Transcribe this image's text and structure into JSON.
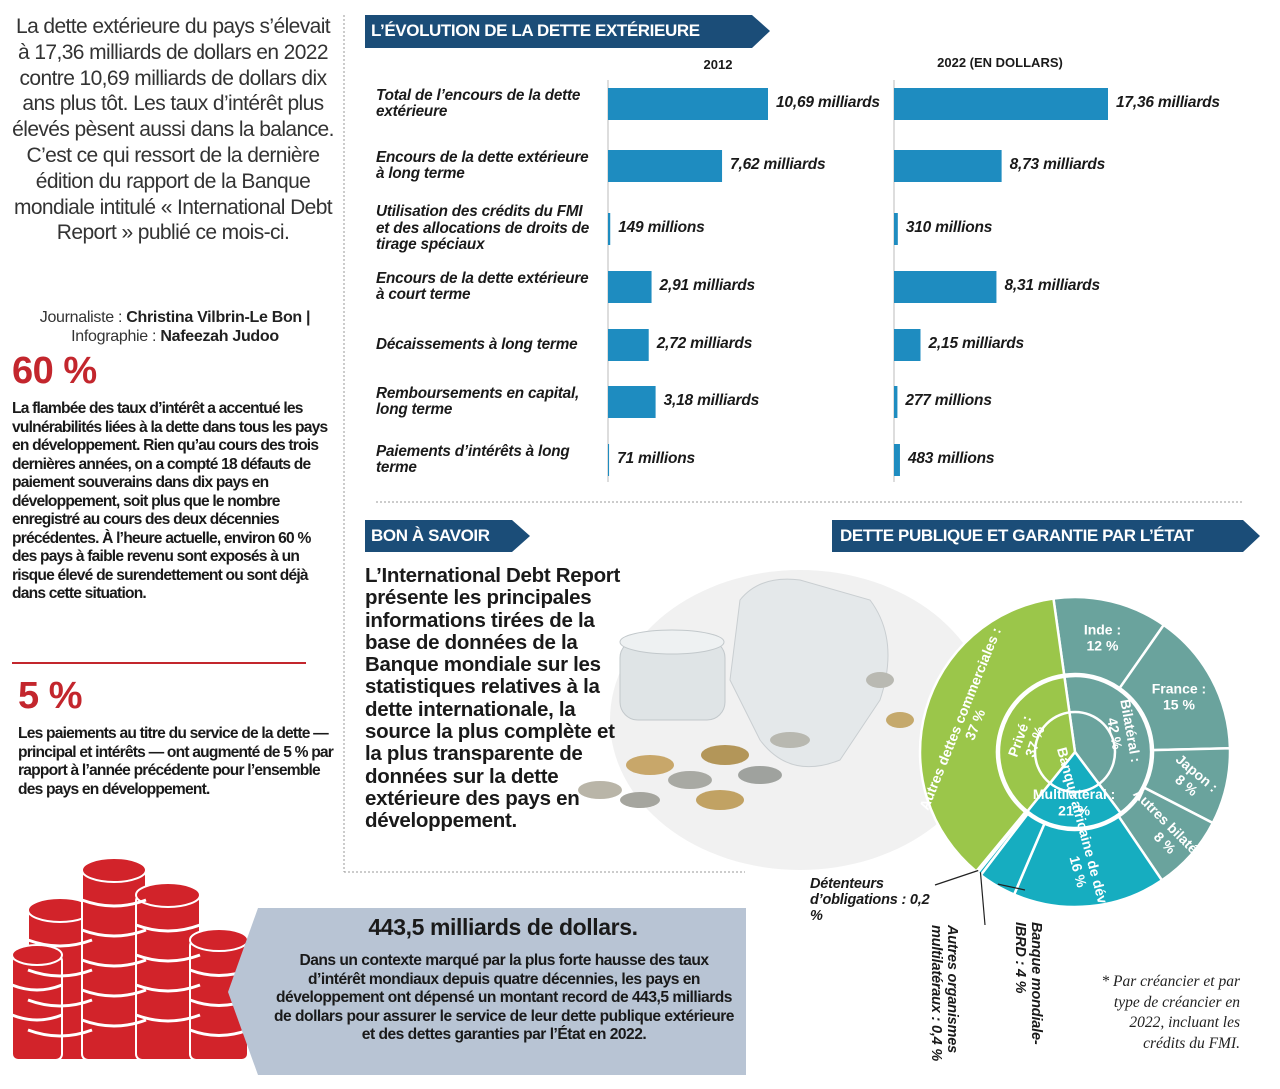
{
  "intro": {
    "paragraph": "La dette extérieure du pays s’élevait à 17,36 milliards de dollars en 2022 contre 10,69 milliards de dollars dix ans plus tôt. Les taux d’intérêt plus élevés pèsent aussi dans la balance. C’est ce qui ressort de la dernière édition du rapport de la Banque mondiale intitulé « International Debt Report » publié ce mois-ci.",
    "credits": [
      {
        "role": "Journaliste :",
        "name": "Christina Vilbrin-Le Bon |"
      },
      {
        "role": "Infographie :",
        "name": "Nafeezah Judoo"
      }
    ]
  },
  "facts": [
    {
      "figure": "60 %",
      "text": "La flambée des taux d’intérêt a accentué les vulnérabilités liées à la dette dans tous les pays en développement. Rien qu’au cours des trois dernières années, on a compté 18 défauts de paiement souverains dans dix pays en développement, soit plus que le nombre enregistré au cours des deux décennies précédentes. À l’heure actuelle, environ 60 % des pays à faible revenu sont exposés à un risque élevé de surendettement ou sont déjà dans cette situation."
    },
    {
      "figure": "5 %",
      "text": "Les paiements au titre du service de la dette — principal et intérêts — ont augmenté de 5 % par rapport à l’année précédente pour l’ensemble des pays en développement."
    }
  ],
  "highlight": {
    "title": "443,5 milliards de dollars.",
    "text": "Dans un contexte marqué par la plus forte hausse des taux d’intérêt mondiaux depuis quatre décennies, les pays en développement ont dépensé un montant record de 443,5 milliards de dollars pour assurer le service de leur dette publique extérieure et des dettes garanties par l’État en 2022."
  },
  "bon_a_savoir": {
    "title": "BON À SAVOIR",
    "text": "L’International Debt Report présente les principales informations tirées de la base de données de la Banque mondiale sur les statistiques relatives à la dette internationale, la source la plus complète et la plus transparente de données sur la dette extérieure des pays en développement."
  },
  "chart_data": [
    {
      "type": "bar",
      "title": "L’ÉVOLUTION DE LA DETTE EXTÉRIEURE",
      "categories": [
        "Total de l’encours de la dette extérieure",
        "Encours de la dette extérieure à long terme",
        "Utilisation des crédits du FMI et des allocations de droits de tirage spéciaux",
        "Encours de la dette extérieure à court terme",
        "Décaissements à long terme",
        "Remboursements en capital, long terme",
        "Paiements d’intérêts à long terme"
      ],
      "series": [
        {
          "name": "2012",
          "color": "#1e8cc0",
          "values": [
            10690,
            7620,
            149,
            2910,
            2720,
            3180,
            71
          ],
          "value_labels": [
            "10,69 milliards",
            "7,62 milliards",
            "149 millions",
            "2,91 milliards",
            "2,72 milliards",
            "3,18 milliards",
            "71 millions"
          ]
        },
        {
          "name": "2022 (EN DOLLARS)",
          "color": "#1e8cc0",
          "values": [
            17360,
            8730,
            310,
            8310,
            2150,
            277,
            483
          ],
          "value_labels": [
            "17,36 milliards",
            "8,73 milliards",
            "310 millions",
            "8,31 milliards",
            "2,15 milliards",
            "277 millions",
            "483 millions"
          ]
        }
      ]
    },
    {
      "type": "sunburst",
      "title": "DETTE PUBLIQUE ET GARANTIE PAR L’ÉTAT",
      "inner": [
        {
          "name": "Bilatéral :",
          "value": 42,
          "value_label": "42 %",
          "color": "#6aa39d"
        },
        {
          "name": "Multilatéral :",
          "value": 21,
          "value_label": "21 %",
          "color": "#16adc0"
        },
        {
          "name": "Privé :",
          "value": 37,
          "value_label": "37 %",
          "color": "#9bc64a"
        }
      ],
      "outer": [
        {
          "name": "Inde :",
          "value": 12,
          "value_label": "12 %",
          "color": "#6aa39d"
        },
        {
          "name": "France :",
          "value": 15,
          "value_label": "15 %",
          "color": "#6aa39d"
        },
        {
          "name": "Japon :",
          "value": 8,
          "value_label": "8 %",
          "color": "#6aa39d"
        },
        {
          "name": "Autres bilatéraux",
          "value": 8,
          "value_label": "8 %",
          "color": "#6aa39d"
        },
        {
          "name": "Banque africaine de développement :",
          "value": 16,
          "value_label": "16 %",
          "color": "#16adc0"
        },
        {
          "name": "Banque mondiale-IBRD :",
          "value": 4,
          "value_label": "4 %",
          "color": "#16adc0"
        },
        {
          "name": "Autres organismes multilatéraux :",
          "value": 0.4,
          "value_label": "0,4 %",
          "color": "#16adc0"
        },
        {
          "name": "Détenteurs d’obligations :",
          "value": 0.2,
          "value_label": "0,2 %",
          "color": "#16adc0"
        },
        {
          "name": "Autres dettes commerciales :",
          "value": 37,
          "value_label": "37 %",
          "color": "#9bc64a"
        }
      ],
      "note": "* Par créancier et par type de créancier en 2022, incluant les crédits du FMI."
    }
  ]
}
